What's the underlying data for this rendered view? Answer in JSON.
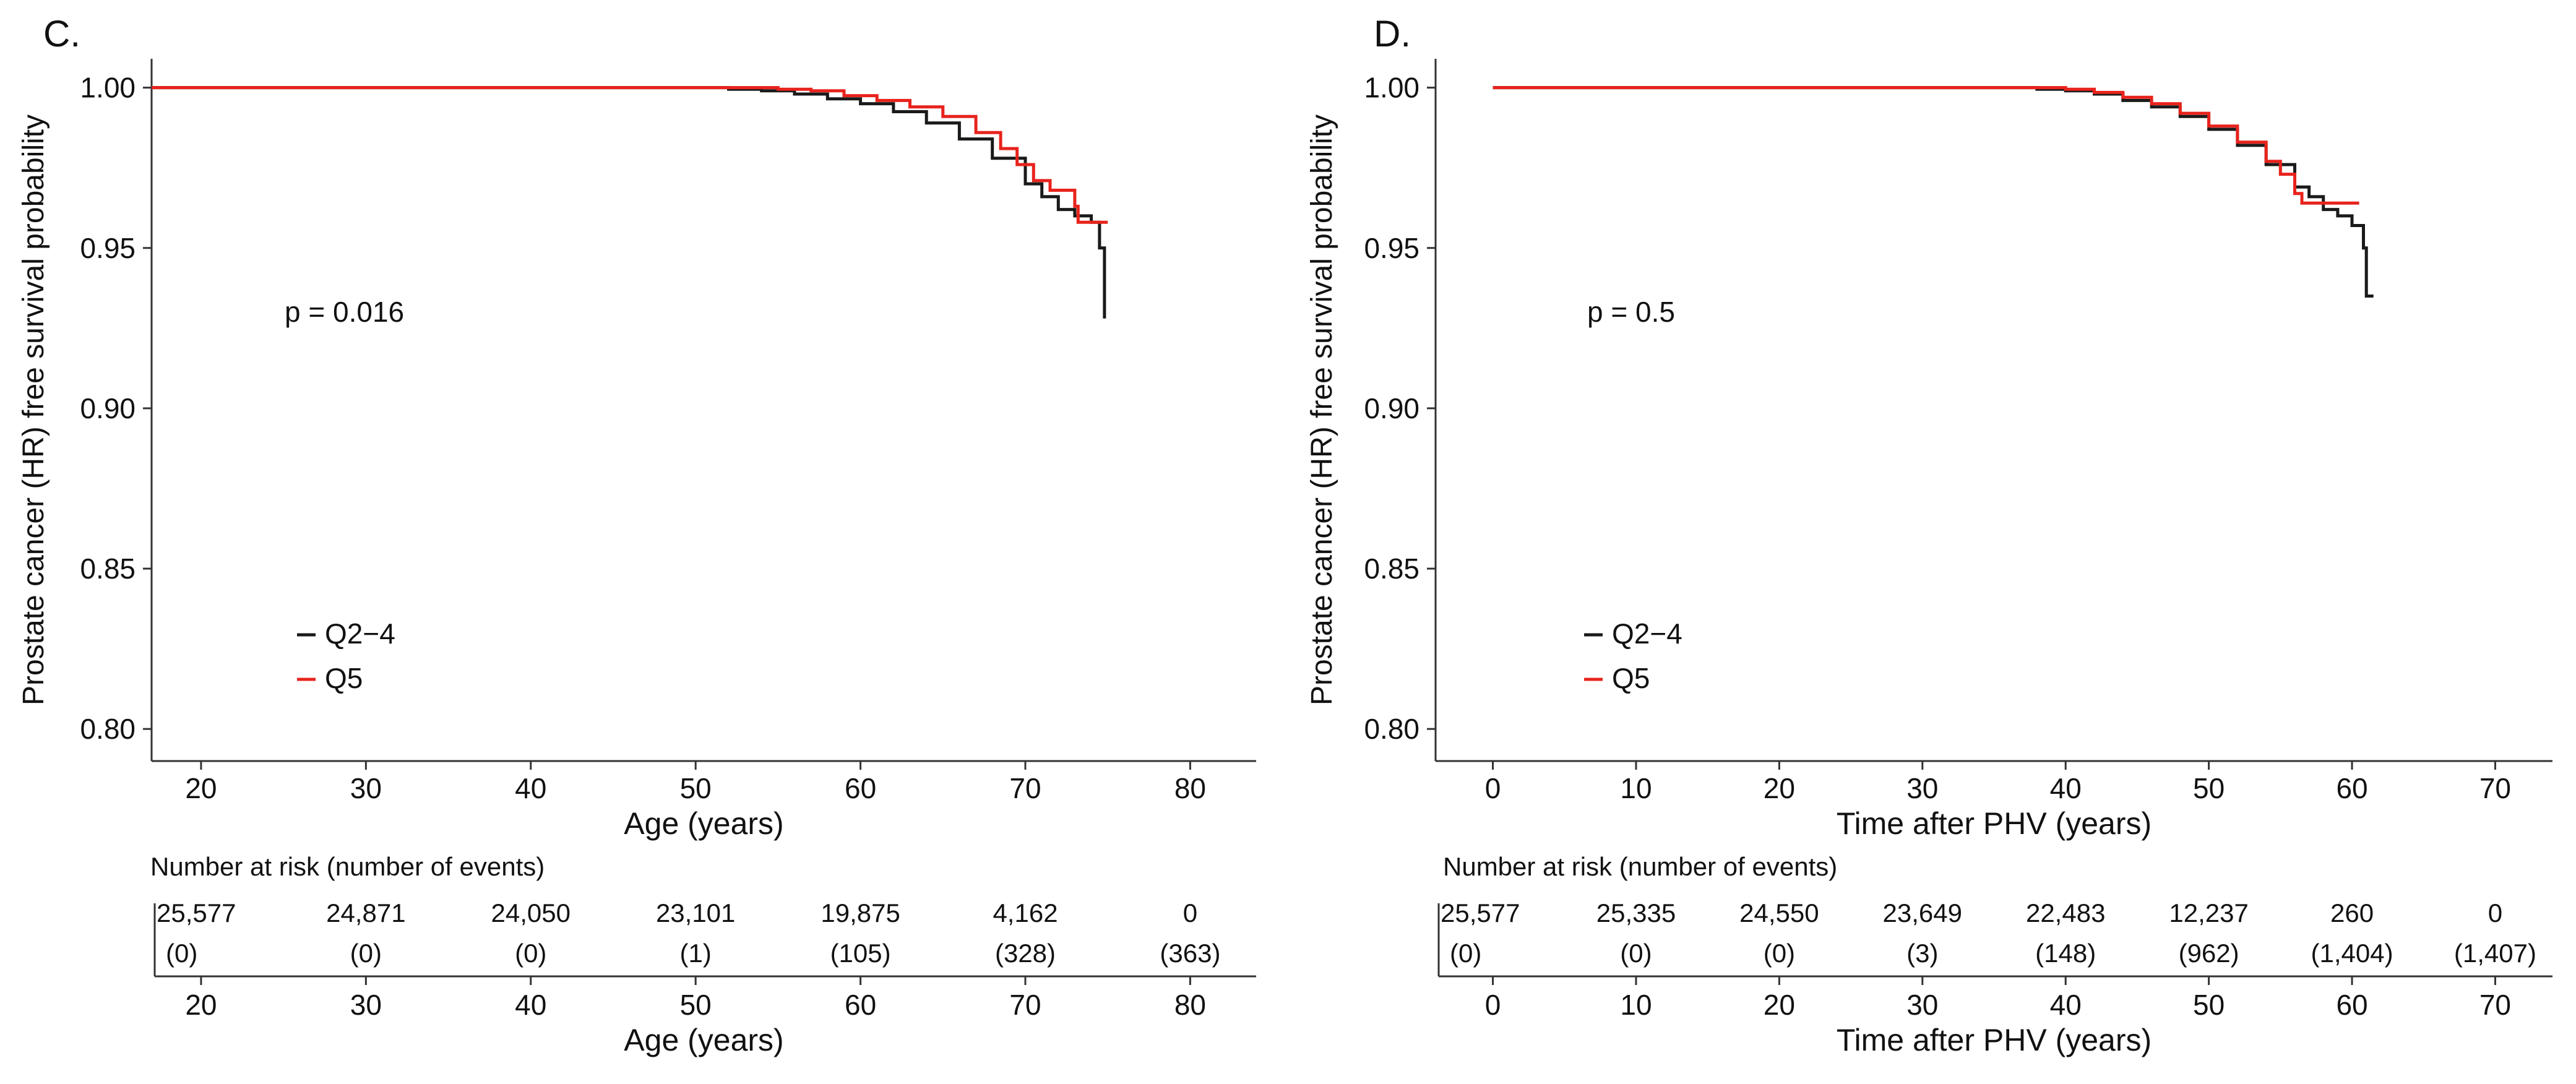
{
  "chart_data": [
    {
      "type": "line",
      "subtype": "kaplan-meier",
      "panel_label": "C.",
      "ylabel": "Prostate cancer (HR) free survival probability",
      "xlabel": "Age (years)",
      "xlim": [
        17,
        84
      ],
      "ylim": [
        0.79,
        1.009
      ],
      "x_ticks": [
        20,
        30,
        40,
        50,
        60,
        70,
        80
      ],
      "y_ticks": [
        0.8,
        0.85,
        0.9,
        0.95,
        1.0
      ],
      "y_tick_labels": [
        "0.80",
        "0.85",
        "0.90",
        "0.95",
        "1.00"
      ],
      "annotation": "p = 0.016",
      "legend": {
        "position": "bottom-left",
        "entries": [
          {
            "label": "Q2−4",
            "color": "#1a1a1a"
          },
          {
            "label": "Q5",
            "color": "#e8231d"
          }
        ]
      },
      "series": [
        {
          "name": "Q2−4",
          "color": "#1a1a1a",
          "points": [
            [
              17,
              1.0
            ],
            [
              50,
              1.0
            ],
            [
              52,
              0.9995
            ],
            [
              54,
              0.999
            ],
            [
              56,
              0.998
            ],
            [
              58,
              0.9965
            ],
            [
              60,
              0.995
            ],
            [
              62,
              0.9925
            ],
            [
              64,
              0.989
            ],
            [
              66,
              0.984
            ],
            [
              68,
              0.978
            ],
            [
              70,
              0.97
            ],
            [
              71,
              0.966
            ],
            [
              72,
              0.962
            ],
            [
              73,
              0.96
            ],
            [
              74,
              0.958
            ],
            [
              74.5,
              0.95
            ],
            [
              74.8,
              0.928
            ]
          ]
        },
        {
          "name": "Q5",
          "color": "#e8231d",
          "points": [
            [
              17,
              1.0
            ],
            [
              52,
              1.0
            ],
            [
              55,
              0.9995
            ],
            [
              57,
              0.999
            ],
            [
              59,
              0.9975
            ],
            [
              61,
              0.996
            ],
            [
              63,
              0.994
            ],
            [
              65,
              0.991
            ],
            [
              67,
              0.986
            ],
            [
              68.5,
              0.981
            ],
            [
              69.5,
              0.976
            ],
            [
              70.5,
              0.971
            ],
            [
              71.5,
              0.968
            ],
            [
              72.5,
              0.968
            ],
            [
              73,
              0.963
            ],
            [
              73.2,
              0.958
            ],
            [
              75,
              0.958
            ]
          ]
        }
      ],
      "risk_table": {
        "title": "Number at risk (number of events)",
        "x_ticks": [
          20,
          30,
          40,
          50,
          60,
          70,
          80
        ],
        "at_risk": [
          "25,577",
          "24,871",
          "24,050",
          "23,101",
          "19,875",
          "4,162",
          "0"
        ],
        "events": [
          "(0)",
          "(0)",
          "(0)",
          "(1)",
          "(105)",
          "(328)",
          "(363)"
        ],
        "xlabel": "Age (years)"
      }
    },
    {
      "type": "line",
      "subtype": "kaplan-meier",
      "panel_label": "D.",
      "ylabel": "Prostate cancer (HR) free survival probability",
      "xlabel": "Time after PHV (years)",
      "xlim": [
        -4,
        74
      ],
      "ylim": [
        0.79,
        1.009
      ],
      "x_ticks": [
        0,
        10,
        20,
        30,
        40,
        50,
        60,
        70
      ],
      "y_ticks": [
        0.8,
        0.85,
        0.9,
        0.95,
        1.0
      ],
      "y_tick_labels": [
        "0.80",
        "0.85",
        "0.90",
        "0.95",
        "1.00"
      ],
      "annotation": "p = 0.5",
      "legend": {
        "position": "bottom-left",
        "entries": [
          {
            "label": "Q2−4",
            "color": "#1a1a1a"
          },
          {
            "label": "Q5",
            "color": "#e8231d"
          }
        ]
      },
      "series": [
        {
          "name": "Q2−4",
          "color": "#1a1a1a",
          "points": [
            [
              0,
              1.0
            ],
            [
              36,
              1.0
            ],
            [
              38,
              0.9995
            ],
            [
              40,
              0.999
            ],
            [
              42,
              0.998
            ],
            [
              44,
              0.996
            ],
            [
              46,
              0.994
            ],
            [
              48,
              0.991
            ],
            [
              50,
              0.987
            ],
            [
              52,
              0.982
            ],
            [
              54,
              0.976
            ],
            [
              56,
              0.969
            ],
            [
              57,
              0.966
            ],
            [
              58,
              0.962
            ],
            [
              59,
              0.96
            ],
            [
              60,
              0.957
            ],
            [
              60.8,
              0.95
            ],
            [
              61,
              0.935
            ],
            [
              61.5,
              0.935
            ]
          ]
        },
        {
          "name": "Q5",
          "color": "#e8231d",
          "points": [
            [
              0,
              1.0
            ],
            [
              37,
              1.0
            ],
            [
              40,
              0.9995
            ],
            [
              42,
              0.9985
            ],
            [
              44,
              0.997
            ],
            [
              46,
              0.995
            ],
            [
              48,
              0.992
            ],
            [
              50,
              0.988
            ],
            [
              52,
              0.983
            ],
            [
              54,
              0.977
            ],
            [
              55,
              0.973
            ],
            [
              56,
              0.967
            ],
            [
              56.5,
              0.964
            ],
            [
              58,
              0.964
            ],
            [
              60.5,
              0.964
            ]
          ]
        }
      ],
      "risk_table": {
        "title": "Number at risk (number of events)",
        "x_ticks": [
          0,
          10,
          20,
          30,
          40,
          50,
          60,
          70
        ],
        "at_risk": [
          "25,577",
          "25,335",
          "24,550",
          "23,649",
          "22,483",
          "12,237",
          "260",
          "0"
        ],
        "events": [
          "(0)",
          "(0)",
          "(0)",
          "(3)",
          "(148)",
          "(962)",
          "(1,404)",
          "(1,407)"
        ],
        "xlabel": "Time after PHV (years)"
      }
    }
  ]
}
